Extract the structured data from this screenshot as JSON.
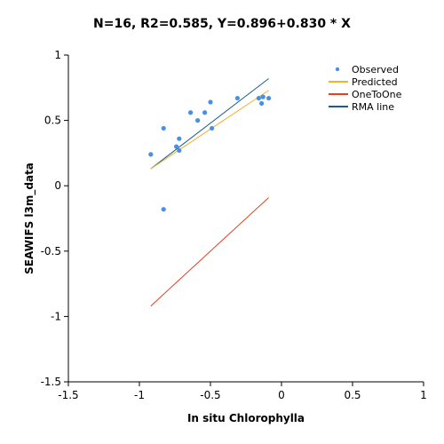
{
  "chart_data": {
    "type": "scatter",
    "title": "N=16, R2=0.585, Y=0.896+0.830 * X",
    "xlabel": "In situ  Chlorophylla",
    "ylabel": "SEAWIFS l3m_data",
    "xlim": [
      -1.5,
      1
    ],
    "ylim": [
      -1.5,
      1
    ],
    "xticks": [
      -1.5,
      -1,
      -0.5,
      0,
      0.5,
      1
    ],
    "yticks": [
      -1.5,
      -1,
      -0.5,
      0,
      0.5,
      1
    ],
    "xtick_labels": [
      "-1.5",
      "-1",
      "-0.5",
      "0",
      "0.5",
      "1"
    ],
    "ytick_labels": [
      "-1.5",
      "-1",
      "-0.5",
      "0",
      "0.5",
      "1"
    ],
    "grid": false,
    "legend_position": "top-right",
    "series": [
      {
        "name": "Observed",
        "kind": "points",
        "color": "#4a8fe0",
        "points": [
          {
            "x": -0.92,
            "y": 0.24
          },
          {
            "x": -0.83,
            "y": 0.44
          },
          {
            "x": -0.83,
            "y": -0.18
          },
          {
            "x": -0.74,
            "y": 0.3
          },
          {
            "x": -0.72,
            "y": 0.36
          },
          {
            "x": -0.72,
            "y": 0.27
          },
          {
            "x": -0.64,
            "y": 0.56
          },
          {
            "x": -0.59,
            "y": 0.5
          },
          {
            "x": -0.54,
            "y": 0.56
          },
          {
            "x": -0.5,
            "y": 0.64
          },
          {
            "x": -0.49,
            "y": 0.44
          },
          {
            "x": -0.31,
            "y": 0.67
          },
          {
            "x": -0.16,
            "y": 0.67
          },
          {
            "x": -0.14,
            "y": 0.63
          },
          {
            "x": -0.13,
            "y": 0.68
          },
          {
            "x": -0.09,
            "y": 0.67
          }
        ]
      },
      {
        "name": "Predicted",
        "kind": "line",
        "color": "#f0b030",
        "points": [
          {
            "x": -0.92,
            "y": 0.13
          },
          {
            "x": -0.09,
            "y": 0.73
          }
        ]
      },
      {
        "name": "OneToOne",
        "kind": "line",
        "color": "#dd4422",
        "points": [
          {
            "x": -0.92,
            "y": -0.92
          },
          {
            "x": -0.09,
            "y": -0.09
          }
        ]
      },
      {
        "name": "RMA line",
        "kind": "line",
        "color": "#1a5c8a",
        "points": [
          {
            "x": -0.92,
            "y": 0.13
          },
          {
            "x": -0.09,
            "y": 0.82
          }
        ]
      }
    ]
  }
}
